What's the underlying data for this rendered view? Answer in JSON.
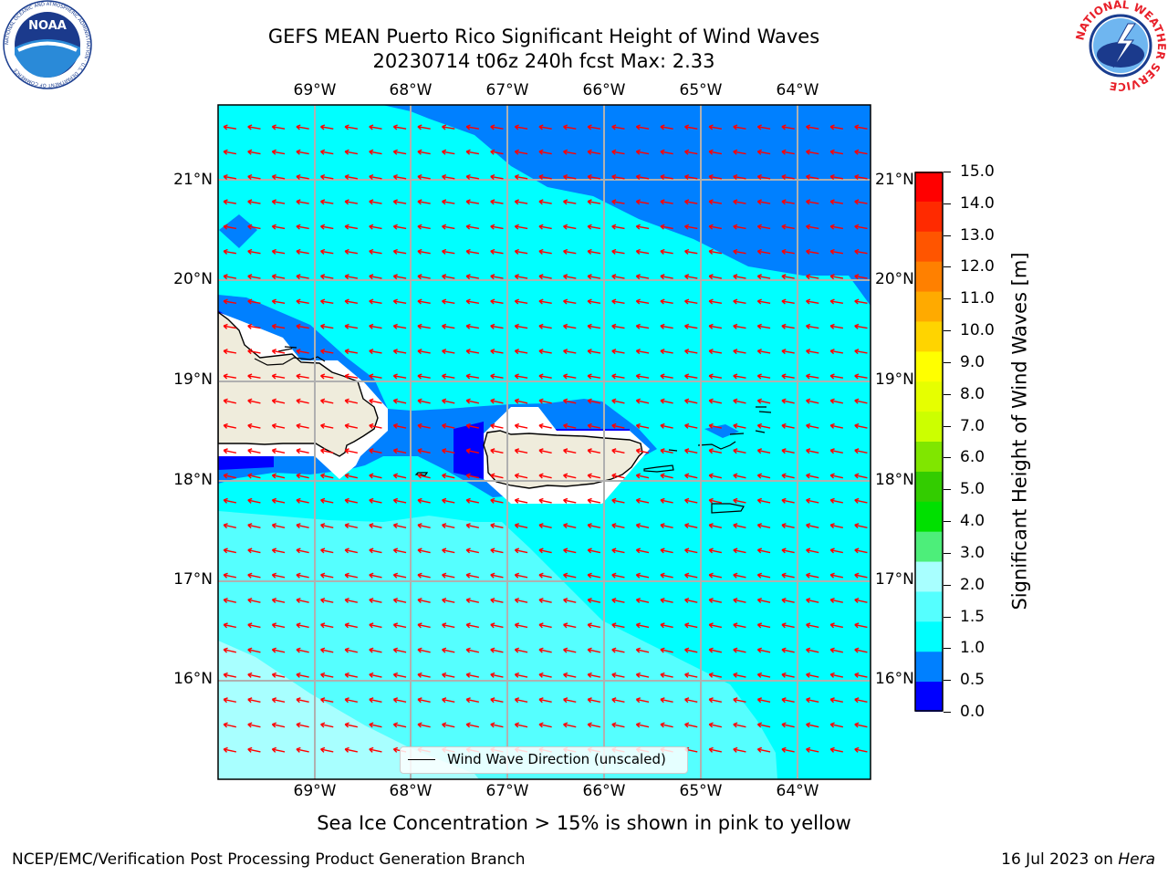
{
  "title": {
    "line1": "GEFS MEAN Puerto Rico Significant Height of Wind Waves",
    "line2": "20230714 t06z 240h fcst   Max: 2.33"
  },
  "map": {
    "lon_labels": [
      "69°W",
      "68°W",
      "67°W",
      "66°W",
      "65°W",
      "64°W"
    ],
    "lat_labels": [
      "21°N",
      "20°N",
      "19°N",
      "18°N",
      "17°N",
      "16°N"
    ],
    "legend_label": "Wind Wave Direction (unscaled)",
    "arrow_color": "#ff0000",
    "land_color": "#efecdc",
    "gridline_color": "#b0b0b0"
  },
  "colorbar": {
    "label": "Significant Height of Wind Waves [m]",
    "ticks": [
      "15.0",
      "14.0",
      "13.0",
      "12.0",
      "11.0",
      "10.0",
      "9.0",
      "8.0",
      "7.0",
      "6.0",
      "5.0",
      "4.0",
      "3.0",
      "2.0",
      "1.5",
      "1.0",
      "0.5",
      "0.0"
    ],
    "colors_top_to_bottom": [
      "#ff0000",
      "#ff2a00",
      "#ff5500",
      "#ff8000",
      "#ffaa00",
      "#ffd400",
      "#ffff00",
      "#e6ff00",
      "#ccff00",
      "#80e600",
      "#33cc00",
      "#00e000",
      "#4dee7a",
      "#a8ffff",
      "#55ffff",
      "#00ffff",
      "#0080ff",
      "#0000ff"
    ]
  },
  "notes": {
    "sea_ice": "Sea Ice Concentration > 15% is shown in pink to yellow",
    "producer": "NCEP/EMC/Verification Post Processing Product Generation Branch",
    "date_prefix": "16 Jul 2023 on ",
    "machine": "Hera"
  },
  "logos": {
    "noaa_text": "NOAA",
    "noaa_ring": "NATIONAL OCEANIC AND ATMOSPHERIC ADMINISTRATION · U.S. DEPARTMENT OF COMMERCE",
    "nws_ring": "NATIONAL WEATHER SERVICE"
  }
}
